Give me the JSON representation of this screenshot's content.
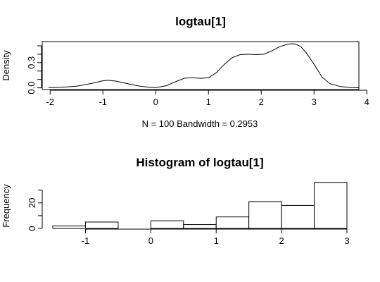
{
  "chart_data": [
    {
      "type": "line",
      "title": "logtau[1]",
      "xlabel": "N = 100   Bandwidth = 0.2953",
      "ylabel": "Density",
      "xlim": [
        -2.15,
        3.85
      ],
      "ylim": [
        -0.02,
        0.55
      ],
      "xticks": [
        -2,
        -1,
        0,
        1,
        2,
        3,
        4
      ],
      "yticks": [
        0.0,
        0.3
      ],
      "ytick_labels": [
        "0.0",
        "0.3"
      ],
      "ytick_extra": [
        0.1,
        0.2,
        0.4,
        0.5
      ],
      "frame": true,
      "x": [
        -2.03,
        -1.8,
        -1.5,
        -1.2,
        -1.0,
        -0.9,
        -0.75,
        -0.5,
        -0.3,
        -0.1,
        0.0,
        0.2,
        0.4,
        0.55,
        0.7,
        0.85,
        1.0,
        1.15,
        1.3,
        1.45,
        1.6,
        1.75,
        1.9,
        2.05,
        2.2,
        2.35,
        2.5,
        2.6,
        2.65,
        2.75,
        2.85,
        3.0,
        3.15,
        3.3,
        3.5,
        3.7,
        3.85
      ],
      "y": [
        0.003,
        0.006,
        0.02,
        0.055,
        0.085,
        0.09,
        0.08,
        0.045,
        0.02,
        0.005,
        0.003,
        0.025,
        0.08,
        0.115,
        0.12,
        0.113,
        0.12,
        0.18,
        0.28,
        0.36,
        0.395,
        0.4,
        0.395,
        0.4,
        0.44,
        0.49,
        0.52,
        0.525,
        0.52,
        0.49,
        0.42,
        0.28,
        0.13,
        0.05,
        0.015,
        0.003,
        0.001
      ]
    },
    {
      "type": "bar",
      "title": "Histogram of logtau[1]",
      "ylabel": "Frequency",
      "xlim": [
        -1.5,
        3.0
      ],
      "ylim": [
        0,
        37
      ],
      "xticks": [
        -1,
        0,
        1,
        2,
        3
      ],
      "yticks": [
        0,
        20
      ],
      "ytick_extra": [
        10,
        30
      ],
      "frame": false,
      "bin_edges": [
        -1.5,
        -1.0,
        -0.5,
        0.0,
        0.5,
        1.0,
        1.5,
        2.0,
        2.5,
        3.0
      ],
      "values": [
        2,
        5,
        0,
        6,
        3,
        9,
        21,
        18,
        36
      ]
    }
  ]
}
